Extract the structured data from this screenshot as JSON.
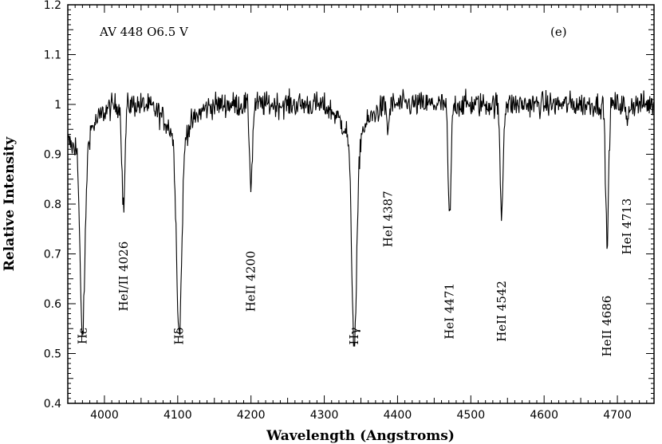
{
  "chart_data": {
    "type": "line",
    "title": "",
    "xlabel": "Wavelength (Angstroms)",
    "ylabel": "Relative Intensity",
    "xlim": [
      3950,
      4750
    ],
    "ylim": [
      0.4,
      1.2
    ],
    "x_ticks": [
      4000,
      4100,
      4200,
      4300,
      4400,
      4500,
      4600,
      4700
    ],
    "y_ticks": [
      0.4,
      0.5,
      0.6,
      0.7,
      0.8,
      0.9,
      1,
      1.1,
      1.2
    ],
    "grid": false,
    "annotations": {
      "star": "AV 448 O6.5 V",
      "panel": "(e)"
    },
    "continuum": 1.0,
    "noise_amplitude": 0.018,
    "lines": [
      {
        "label": "Hε",
        "x": 3970,
        "depth": 0.4,
        "width": 3.5,
        "label_x": 3970,
        "label_y": 0.535
      },
      {
        "label": "HeI/II 4026",
        "x": 4026,
        "depth": 0.21,
        "width": 2.0,
        "label_x": 4026,
        "label_y": 0.655
      },
      {
        "label": "Hδ",
        "x": 4102,
        "depth": 0.4,
        "width": 3.5,
        "label_x": 4102,
        "label_y": 0.535
      },
      {
        "label": "HeII 4200",
        "x": 4200,
        "depth": 0.16,
        "width": 2.0,
        "label_x": 4200,
        "label_y": 0.645
      },
      {
        "label": "Hγ",
        "x": 4341,
        "depth": 0.42,
        "width": 3.5,
        "label_x": 4341,
        "label_y": 0.535
      },
      {
        "label": "HeI 4387",
        "x": 4387,
        "depth": 0.05,
        "width": 1.5,
        "label_x": 4387,
        "label_y": 0.77
      },
      {
        "label": "HeI 4471",
        "x": 4471,
        "depth": 0.23,
        "width": 2.0,
        "label_x": 4471,
        "label_y": 0.585
      },
      {
        "label": "HeII 4542",
        "x": 4542,
        "depth": 0.22,
        "width": 2.0,
        "label_x": 4542,
        "label_y": 0.585
      },
      {
        "label": "HeII 4686",
        "x": 4686,
        "depth": 0.28,
        "width": 2.0,
        "label_x": 4686,
        "label_y": 0.555
      },
      {
        "label": "HeI 4713",
        "x": 4713,
        "depth": 0.04,
        "width": 1.5,
        "label_x": 4713,
        "label_y": 0.755
      }
    ]
  }
}
